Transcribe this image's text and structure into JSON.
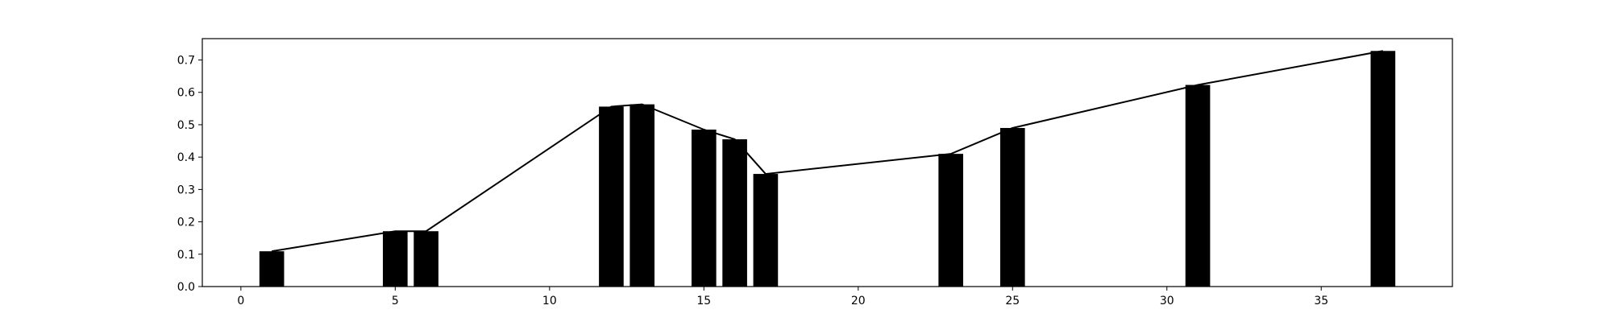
{
  "chart_data": {
    "type": "bar",
    "title": "",
    "xlabel": "",
    "ylabel": "",
    "xlim": [
      -1.25,
      39.25
    ],
    "ylim": [
      0,
      0.766
    ],
    "xticks": [
      0,
      5,
      10,
      15,
      20,
      25,
      30,
      35
    ],
    "yticks": [
      0.0,
      0.1,
      0.2,
      0.3,
      0.4,
      0.5,
      0.6,
      0.7
    ],
    "xtick_labels": [
      "0",
      "5",
      "10",
      "15",
      "20",
      "25",
      "30",
      "35"
    ],
    "ytick_labels": [
      "0.0",
      "0.1",
      "0.2",
      "0.3",
      "0.4",
      "0.5",
      "0.6",
      "0.7"
    ],
    "grid": false,
    "legend": false,
    "bar_color": "#000000",
    "line_color": "#000000",
    "bars": {
      "x": [
        1,
        5,
        6,
        12,
        13,
        15,
        16,
        17,
        23,
        25,
        31,
        37
      ],
      "values": [
        0.109,
        0.171,
        0.171,
        0.556,
        0.563,
        0.485,
        0.455,
        0.348,
        0.41,
        0.49,
        0.623,
        0.728
      ],
      "width": 0.8
    },
    "line": {
      "x": [
        1,
        5,
        6,
        12,
        13,
        15,
        16,
        17,
        23,
        25,
        31,
        37
      ],
      "y": [
        0.109,
        0.171,
        0.171,
        0.556,
        0.563,
        0.485,
        0.455,
        0.348,
        0.41,
        0.49,
        0.623,
        0.728
      ]
    }
  }
}
